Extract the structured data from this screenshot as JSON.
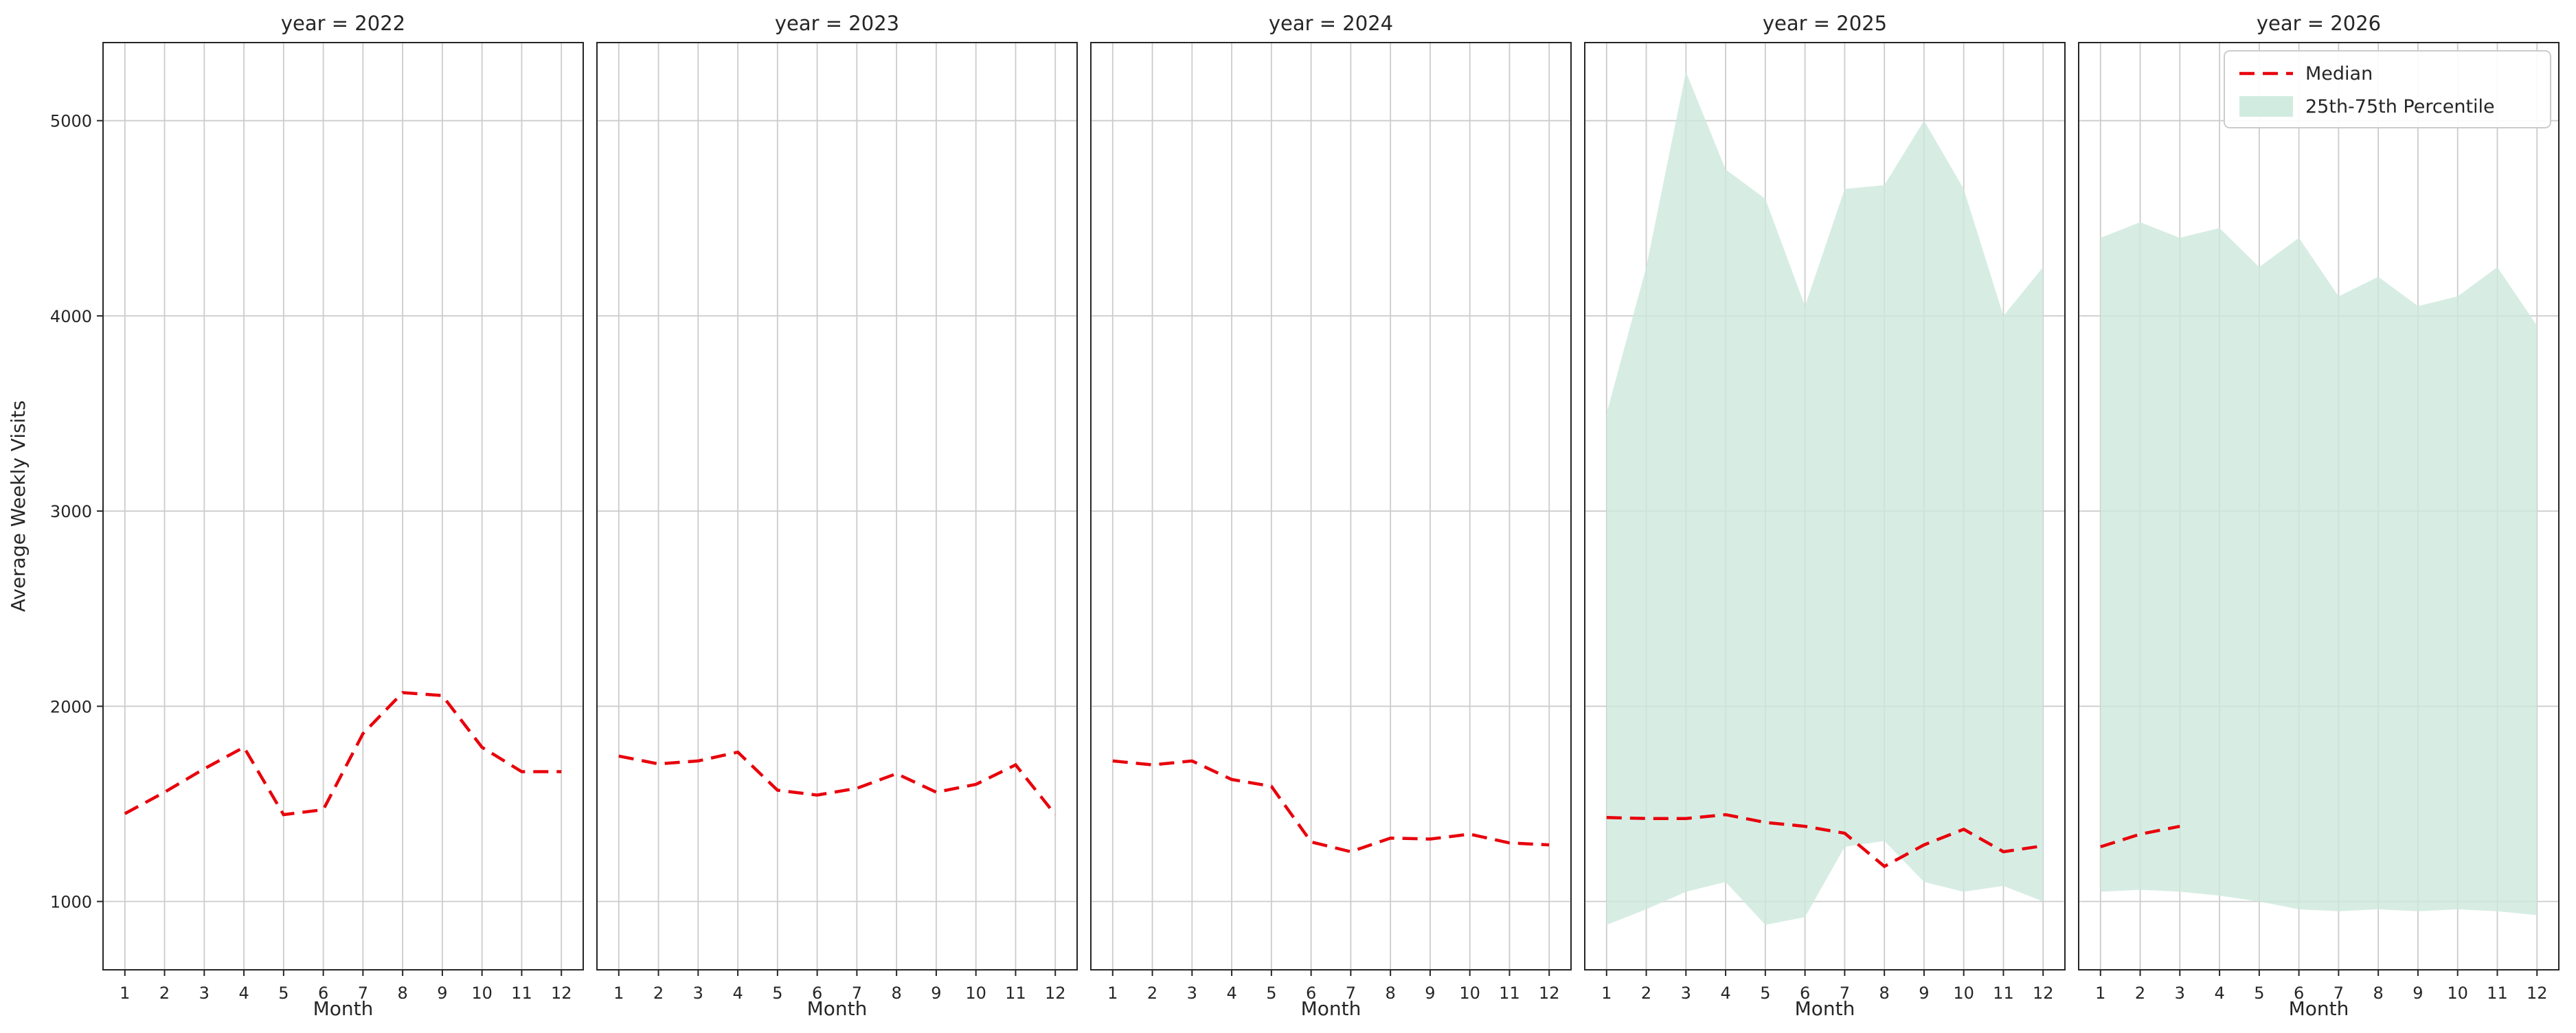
{
  "chart_data": {
    "type": "line",
    "title": "",
    "xlabel": "Month",
    "ylabel": "Average Weekly Visits",
    "x": [
      1,
      2,
      3,
      4,
      5,
      6,
      7,
      8,
      9,
      10,
      11,
      12
    ],
    "xlim": [
      0.45,
      12.55
    ],
    "ylim": [
      650,
      5400
    ],
    "yticks": [
      1000,
      2000,
      3000,
      4000,
      5000
    ],
    "xticks": [
      1,
      2,
      3,
      4,
      5,
      6,
      7,
      8,
      9,
      10,
      11,
      12
    ],
    "grid": true,
    "colors": {
      "median": "#e8000b",
      "band": "#cde9dd",
      "grid": "#cccccc",
      "spine": "#262626",
      "text": "#262626",
      "legend_border": "#cccccc",
      "legend_bg": "#ffffff"
    },
    "legend": {
      "position": "upper-right-last-facet",
      "items": [
        {
          "label": "Median",
          "type": "dashed-line",
          "color": "#e8000b"
        },
        {
          "label": "25th-75th Percentile",
          "type": "patch",
          "color": "#cde9dd"
        }
      ]
    },
    "facets": [
      {
        "label": "year = 2022",
        "median": [
          1450,
          1560,
          1680,
          1790,
          1445,
          1470,
          1860,
          2070,
          2055,
          1790,
          1665,
          1665
        ],
        "p25": null,
        "p75": null
      },
      {
        "label": "year = 2023",
        "median": [
          1745,
          1705,
          1720,
          1765,
          1570,
          1545,
          1580,
          1655,
          1560,
          1600,
          1700,
          1445
        ],
        "p25": null,
        "p75": null
      },
      {
        "label": "year = 2024",
        "median": [
          1720,
          1700,
          1720,
          1625,
          1590,
          1305,
          1255,
          1325,
          1320,
          1345,
          1300,
          1290
        ],
        "p25": null,
        "p75": null
      },
      {
        "label": "year = 2025",
        "median": [
          1430,
          1425,
          1425,
          1445,
          1405,
          1385,
          1350,
          1180,
          1290,
          1370,
          1255,
          1285
        ],
        "p25": [
          880,
          960,
          1050,
          1100,
          880,
          920,
          1280,
          1310,
          1100,
          1050,
          1080,
          1000
        ],
        "p75": [
          3500,
          4250,
          5250,
          4750,
          4600,
          4050,
          4650,
          4670,
          5000,
          4650,
          4000,
          4250
        ]
      },
      {
        "label": "year = 2026",
        "median": [
          1280,
          1345,
          1385,
          null,
          null,
          null,
          null,
          null,
          null,
          null,
          null,
          null
        ],
        "p25": [
          1050,
          1060,
          1050,
          1030,
          1000,
          960,
          950,
          960,
          950,
          960,
          950,
          930
        ],
        "p75": [
          4400,
          4480,
          4400,
          4450,
          4250,
          4400,
          4100,
          4200,
          4050,
          4100,
          4250,
          3950
        ]
      }
    ]
  }
}
